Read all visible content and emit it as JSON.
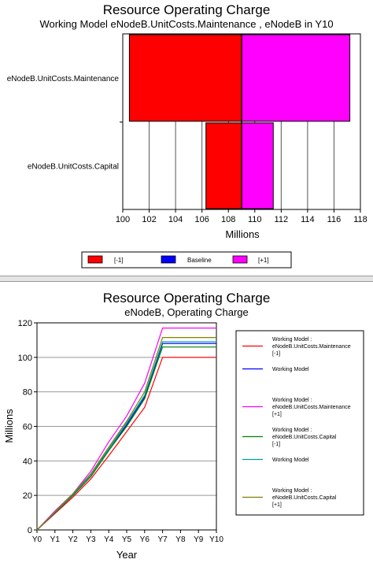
{
  "chart_data": [
    {
      "type": "bar",
      "orientation": "horizontal",
      "title": "Resource Operating Charge",
      "subtitle": "Working Model eNodeB.UnitCosts.Maintenance , eNodeB in Y10",
      "xlabel": "Millions",
      "xlim": [
        100,
        118
      ],
      "xticks": [
        100,
        102,
        104,
        106,
        108,
        110,
        112,
        114,
        116,
        118
      ],
      "baseline": 109,
      "grid": true,
      "categories": [
        "eNodeB.UnitCosts.Maintenance",
        "eNodeB.UnitCosts.Capital"
      ],
      "series": [
        {
          "name": "[-1]",
          "color": "#ff0000",
          "values": [
            100.5,
            106.3
          ]
        },
        {
          "name": "Baseline",
          "color": "#0000ff",
          "values": [
            109,
            109
          ]
        },
        {
          "name": "[+1]",
          "color": "#ff00ff",
          "values": [
            117.2,
            111.4
          ]
        }
      ],
      "legend_position": "bottom"
    },
    {
      "type": "line",
      "title": "Resource Operating Charge",
      "subtitle": "eNodeB, Operating Charge",
      "xlabel": "Year",
      "ylabel": "Millions",
      "x": [
        "Y0",
        "Y1",
        "Y2",
        "Y3",
        "Y4",
        "Y5",
        "Y6",
        "Y7",
        "Y8",
        "Y9",
        "Y10"
      ],
      "ylim": [
        0,
        120
      ],
      "yticks": [
        0,
        20,
        40,
        60,
        80,
        100,
        120
      ],
      "grid": true,
      "legend_position": "right",
      "series": [
        {
          "name": "Working Model : eNodeB.UnitCosts.Maintenance [-1]",
          "color": "#ff0000",
          "values": [
            0,
            9.5,
            19,
            29.5,
            43,
            57,
            71,
            100,
            100,
            100,
            100
          ]
        },
        {
          "name": "Working Model",
          "color": "#0000ff",
          "values": [
            0,
            10,
            20,
            31,
            46,
            61,
            77,
            108,
            108,
            108,
            108
          ]
        },
        {
          "name": "Working Model : eNodeB.UnitCosts.Maintenance [+1]",
          "color": "#ff00ff",
          "values": [
            0,
            11,
            21,
            34,
            51,
            66,
            85,
            117,
            117,
            117,
            117
          ]
        },
        {
          "name": "Working Model : eNodeB.UnitCosts.Capital [-1]",
          "color": "#008000",
          "values": [
            0,
            10,
            20,
            31,
            46,
            60,
            76,
            106,
            106,
            106,
            106
          ]
        },
        {
          "name": "Working Model",
          "color": "#00a0a0",
          "values": [
            0,
            10.2,
            20.5,
            32,
            47,
            62,
            78,
            109,
            109,
            109,
            109
          ]
        },
        {
          "name": "Working Model : eNodeB.UnitCosts.Capital [+1]",
          "color": "#808000",
          "values": [
            0,
            10.5,
            21,
            32.5,
            48,
            63,
            80,
            111.5,
            111.5,
            111.5,
            111.5
          ]
        }
      ]
    }
  ]
}
